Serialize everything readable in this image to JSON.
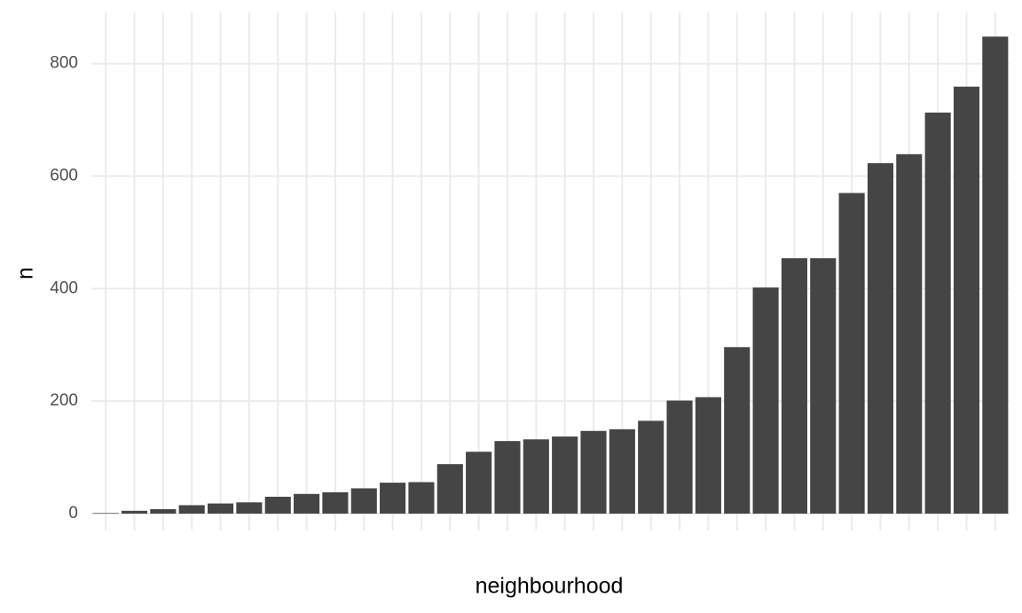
{
  "chart_data": {
    "type": "bar",
    "x_label": "neighbourhood",
    "y_label": "n",
    "categories": [
      null,
      null,
      null,
      null,
      null,
      null,
      null,
      null,
      null,
      null,
      null,
      null,
      null,
      null,
      null,
      null,
      null,
      null,
      null,
      null,
      null,
      null,
      null,
      null,
      null,
      null,
      null,
      null,
      null,
      null,
      null,
      null
    ],
    "values": [
      1,
      5,
      8,
      15,
      18,
      20,
      30,
      35,
      38,
      45,
      55,
      56,
      88,
      110,
      129,
      132,
      137,
      147,
      150,
      165,
      201,
      207,
      296,
      402,
      454,
      454,
      570,
      623,
      639,
      713,
      759,
      848
    ],
    "color": "#454545",
    "ylim": [
      -30,
      891
    ],
    "yticks": [
      0,
      200,
      400,
      600,
      800
    ],
    "grid": true
  }
}
